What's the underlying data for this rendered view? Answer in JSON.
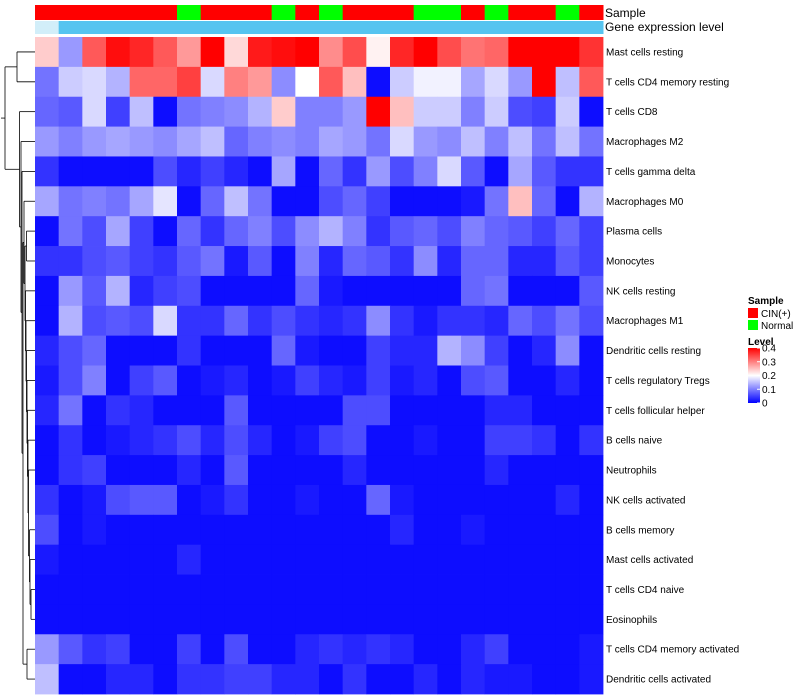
{
  "chart_data": {
    "type": "heatmap",
    "title": "",
    "colors": {
      "low": "#0000ff",
      "mid": "#ffffff",
      "high": "#ff0000",
      "cin": "#ff0000",
      "normal": "#00ff00",
      "gene_track": "#56c4f0",
      "gene_track_first": "#d2eef9",
      "dendrogram": "#000000"
    },
    "tracks": {
      "sample_label": "Sample",
      "gene_label": "Gene expression level"
    },
    "samples": [
      "CIN(+)",
      "CIN(+)",
      "CIN(+)",
      "CIN(+)",
      "CIN(+)",
      "CIN(+)",
      "Normal",
      "CIN(+)",
      "CIN(+)",
      "CIN(+)",
      "Normal",
      "CIN(+)",
      "Normal",
      "CIN(+)",
      "CIN(+)",
      "CIN(+)",
      "Normal",
      "Normal",
      "CIN(+)",
      "Normal",
      "CIN(+)",
      "CIN(+)",
      "Normal",
      "CIN(+)"
    ],
    "rows": [
      "Mast cells resting",
      "T cells CD4 memory resting",
      "T cells CD8",
      "Macrophages M2",
      "T cells gamma delta",
      "Macrophages M0",
      "Plasma cells",
      "Monocytes",
      "NK cells resting",
      "Macrophages M1",
      "Dendritic cells resting",
      "T cells regulatory  Tregs",
      "T cells follicular helper",
      "B cells naive",
      "Neutrophils",
      "NK cells activated",
      "B cells memory",
      "Mast cells activated",
      "T cells CD4 naive",
      "Eosinophils",
      "T cells CD4 memory activated",
      "Dendritic cells activated"
    ],
    "values": [
      [
        0.24,
        0.12,
        0.33,
        0.39,
        0.37,
        0.33,
        0.28,
        0.4,
        0.23,
        0.38,
        0.39,
        0.4,
        0.29,
        0.34,
        0.21,
        0.37,
        0.4,
        0.34,
        0.31,
        0.32,
        0.4,
        0.4,
        0.4,
        0.36
      ],
      [
        0.09,
        0.16,
        0.17,
        0.14,
        0.32,
        0.32,
        0.35,
        0.17,
        0.3,
        0.28,
        0.11,
        0.2,
        0.33,
        0.25,
        0.01,
        0.16,
        0.19,
        0.19,
        0.13,
        0.17,
        0.12,
        0.4,
        0.15,
        0.33
      ],
      [
        0.08,
        0.07,
        0.17,
        0.05,
        0.15,
        0.01,
        0.09,
        0.1,
        0.11,
        0.14,
        0.24,
        0.1,
        0.1,
        0.12,
        0.4,
        0.25,
        0.16,
        0.16,
        0.1,
        0.16,
        0.06,
        0.05,
        0.16,
        0.01
      ],
      [
        0.12,
        0.1,
        0.12,
        0.13,
        0.12,
        0.11,
        0.13,
        0.15,
        0.08,
        0.1,
        0.11,
        0.1,
        0.13,
        0.12,
        0.09,
        0.17,
        0.12,
        0.11,
        0.15,
        0.1,
        0.15,
        0.09,
        0.15,
        0.09
      ],
      [
        0.04,
        0.01,
        0.01,
        0.01,
        0.01,
        0.06,
        0.03,
        0.05,
        0.03,
        0.01,
        0.13,
        0.01,
        0.08,
        0.04,
        0.12,
        0.06,
        0.1,
        0.17,
        0.07,
        0.01,
        0.13,
        0.07,
        0.04,
        0.04
      ],
      [
        0.13,
        0.09,
        0.1,
        0.09,
        0.13,
        0.18,
        0.01,
        0.08,
        0.15,
        0.09,
        0.01,
        0.01,
        0.06,
        0.08,
        0.05,
        0.01,
        0.01,
        0.01,
        0.02,
        0.09,
        0.25,
        0.08,
        0.01,
        0.14
      ],
      [
        0.01,
        0.09,
        0.06,
        0.13,
        0.05,
        0.01,
        0.08,
        0.04,
        0.08,
        0.1,
        0.06,
        0.11,
        0.14,
        0.1,
        0.04,
        0.07,
        0.08,
        0.06,
        0.1,
        0.08,
        0.07,
        0.05,
        0.08,
        0.05
      ],
      [
        0.04,
        0.04,
        0.06,
        0.07,
        0.05,
        0.04,
        0.07,
        0.09,
        0.02,
        0.07,
        0.01,
        0.1,
        0.03,
        0.08,
        0.07,
        0.04,
        0.11,
        0.03,
        0.08,
        0.08,
        0.03,
        0.03,
        0.07,
        0.05
      ],
      [
        0.01,
        0.12,
        0.07,
        0.14,
        0.03,
        0.05,
        0.06,
        0.01,
        0.01,
        0.01,
        0.01,
        0.08,
        0.02,
        0.01,
        0.01,
        0.01,
        0.01,
        0.01,
        0.08,
        0.09,
        0.01,
        0.01,
        0.01,
        0.07
      ],
      [
        0.01,
        0.14,
        0.06,
        0.07,
        0.06,
        0.17,
        0.04,
        0.04,
        0.08,
        0.04,
        0.06,
        0.04,
        0.03,
        0.04,
        0.11,
        0.04,
        0.02,
        0.04,
        0.04,
        0.03,
        0.08,
        0.06,
        0.09,
        0.06
      ],
      [
        0.03,
        0.06,
        0.08,
        0.01,
        0.01,
        0.01,
        0.04,
        0.01,
        0.01,
        0.01,
        0.08,
        0.02,
        0.01,
        0.01,
        0.05,
        0.03,
        0.03,
        0.14,
        0.11,
        0.05,
        0.01,
        0.03,
        0.11,
        0.01
      ],
      [
        0.02,
        0.06,
        0.1,
        0.01,
        0.05,
        0.07,
        0.01,
        0.02,
        0.03,
        0.01,
        0.02,
        0.05,
        0.03,
        0.02,
        0.05,
        0.02,
        0.03,
        0.01,
        0.06,
        0.07,
        0.01,
        0.01,
        0.03,
        0.01
      ],
      [
        0.03,
        0.09,
        0.01,
        0.04,
        0.03,
        0.01,
        0.01,
        0.01,
        0.07,
        0.01,
        0.01,
        0.01,
        0.01,
        0.06,
        0.06,
        0.01,
        0.01,
        0.01,
        0.01,
        0.03,
        0.03,
        0.01,
        0.01,
        0.01
      ],
      [
        0.01,
        0.04,
        0.01,
        0.02,
        0.03,
        0.04,
        0.06,
        0.03,
        0.06,
        0.03,
        0.01,
        0.02,
        0.05,
        0.06,
        0.01,
        0.01,
        0.02,
        0.01,
        0.01,
        0.05,
        0.05,
        0.04,
        0.01,
        0.04
      ],
      [
        0.01,
        0.04,
        0.05,
        0.01,
        0.01,
        0.01,
        0.03,
        0.01,
        0.07,
        0.01,
        0.01,
        0.01,
        0.01,
        0.03,
        0.01,
        0.01,
        0.01,
        0.01,
        0.01,
        0.03,
        0.01,
        0.01,
        0.01,
        0.01
      ],
      [
        0.04,
        0.01,
        0.02,
        0.06,
        0.07,
        0.07,
        0.01,
        0.02,
        0.04,
        0.01,
        0.01,
        0.02,
        0.01,
        0.01,
        0.08,
        0.02,
        0.01,
        0.01,
        0.01,
        0.01,
        0.01,
        0.01,
        0.03,
        0.01
      ],
      [
        0.06,
        0.01,
        0.02,
        0.01,
        0.01,
        0.01,
        0.01,
        0.01,
        0.01,
        0.01,
        0.01,
        0.01,
        0.01,
        0.01,
        0.01,
        0.03,
        0.01,
        0.01,
        0.02,
        0.01,
        0.01,
        0.01,
        0.01,
        0.01
      ],
      [
        0.02,
        0.01,
        0.01,
        0.01,
        0.01,
        0.01,
        0.03,
        0.01,
        0.01,
        0.01,
        0.01,
        0.01,
        0.01,
        0.01,
        0.01,
        0.01,
        0.01,
        0.01,
        0.01,
        0.01,
        0.01,
        0.01,
        0.01,
        0.01
      ],
      [
        0.01,
        0.01,
        0.01,
        0.01,
        0.01,
        0.01,
        0.01,
        0.01,
        0.01,
        0.01,
        0.01,
        0.01,
        0.01,
        0.01,
        0.01,
        0.01,
        0.01,
        0.01,
        0.01,
        0.01,
        0.01,
        0.01,
        0.01,
        0.01
      ],
      [
        0.01,
        0.01,
        0.01,
        0.01,
        0.01,
        0.01,
        0.01,
        0.01,
        0.01,
        0.01,
        0.01,
        0.01,
        0.01,
        0.01,
        0.01,
        0.01,
        0.01,
        0.01,
        0.01,
        0.01,
        0.01,
        0.01,
        0.01,
        0.01
      ],
      [
        0.12,
        0.07,
        0.04,
        0.05,
        0.01,
        0.01,
        0.05,
        0.01,
        0.06,
        0.01,
        0.01,
        0.03,
        0.04,
        0.03,
        0.04,
        0.03,
        0.01,
        0.01,
        0.03,
        0.05,
        0.01,
        0.01,
        0.01,
        0.02
      ],
      [
        0.15,
        0.01,
        0.01,
        0.03,
        0.03,
        0.01,
        0.04,
        0.04,
        0.05,
        0.05,
        0.03,
        0.03,
        0.01,
        0.04,
        0.01,
        0.01,
        0.03,
        0.01,
        0.03,
        0.02,
        0.02,
        0.01,
        0.01,
        0.02
      ]
    ],
    "legend": {
      "sample_title": "Sample",
      "sample_items": [
        {
          "label": "CIN(+)",
          "color": "#ff0000"
        },
        {
          "label": "Normal",
          "color": "#00ff00"
        }
      ],
      "level_title": "Level",
      "level_range": [
        0,
        0.4
      ],
      "level_ticks": [
        {
          "value": 0.4,
          "label": "0.4"
        },
        {
          "value": 0.3,
          "label": "0.3"
        },
        {
          "value": 0.2,
          "label": "0.2"
        },
        {
          "value": 0.1,
          "label": "0.1"
        },
        {
          "value": 0,
          "label": "0"
        }
      ]
    }
  }
}
